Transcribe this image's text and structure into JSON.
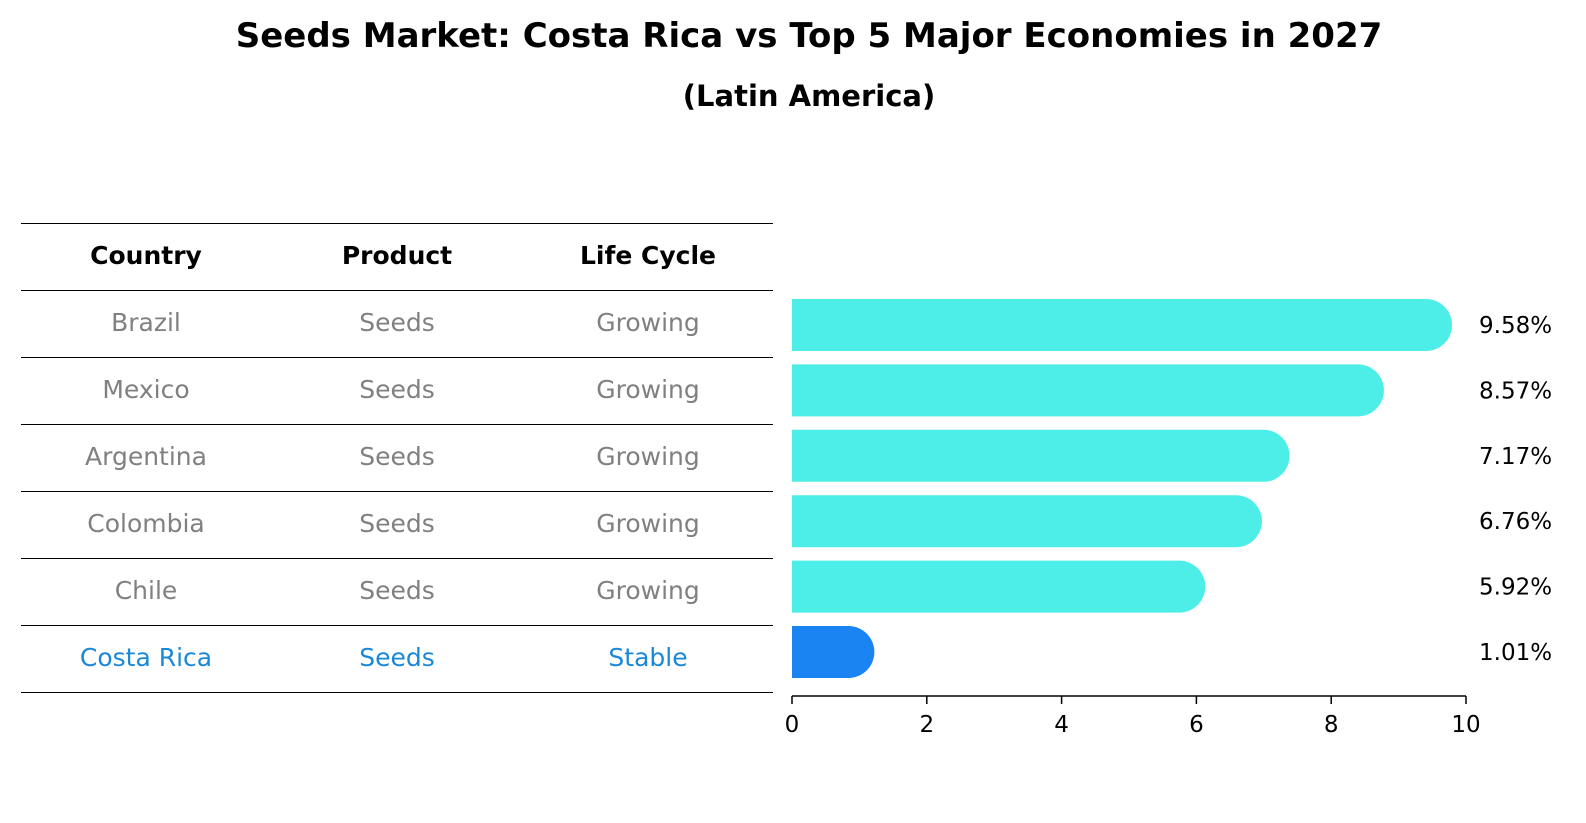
{
  "title": "Seeds Market: Costa Rica vs Top 5 Major Economies in 2027",
  "subtitle": "(Latin America)",
  "table": {
    "headers": [
      "Country",
      "Product",
      "Life Cycle"
    ],
    "rows": [
      [
        "Brazil",
        "Seeds",
        "Growing"
      ],
      [
        "Mexico",
        "Seeds",
        "Growing"
      ],
      [
        "Argentina",
        "Seeds",
        "Growing"
      ],
      [
        "Colombia",
        "Seeds",
        "Growing"
      ],
      [
        "Chile",
        "Seeds",
        "Growing"
      ],
      [
        "Costa Rica",
        "Seeds",
        "Stable"
      ]
    ]
  },
  "colors": {
    "bar": "#4dede8",
    "highlight": "#1a84f2",
    "highlight_text": "#1a88d8",
    "muted_text": "#808080"
  },
  "chart_data": {
    "type": "bar",
    "orientation": "horizontal",
    "categories": [
      "Brazil",
      "Mexico",
      "Argentina",
      "Colombia",
      "Chile",
      "Costa Rica"
    ],
    "values": [
      9.58,
      8.57,
      7.17,
      6.76,
      5.92,
      1.01
    ],
    "value_labels": [
      "9.58%",
      "8.57%",
      "7.17%",
      "6.76%",
      "5.92%",
      "1.01%"
    ],
    "highlight": "Costa Rica",
    "xlim": [
      0,
      10
    ],
    "xticks": [
      0,
      2,
      4,
      6,
      8,
      10
    ],
    "xlabel": "",
    "ylabel": ""
  }
}
